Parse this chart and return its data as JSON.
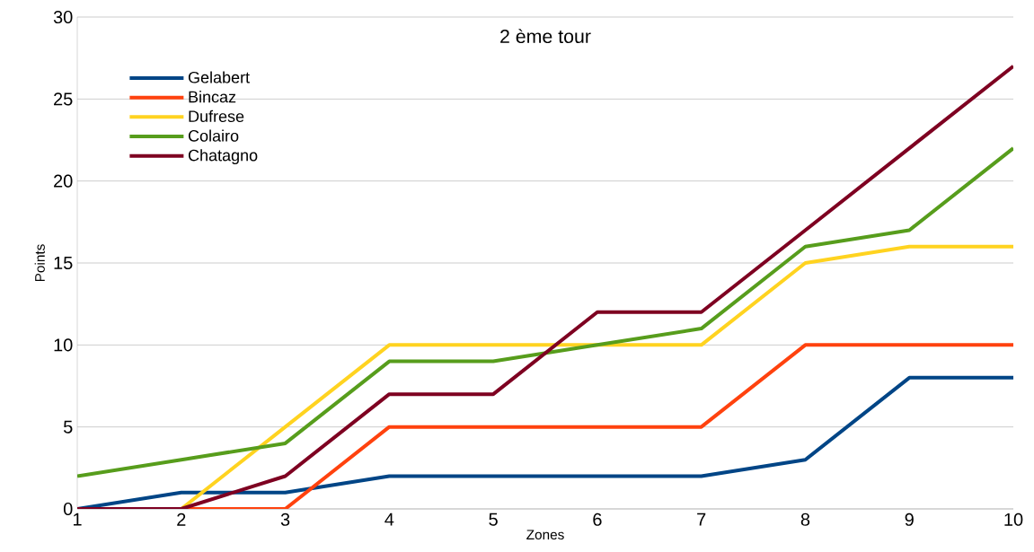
{
  "chart_data": {
    "type": "line",
    "title": "2 ème tour",
    "xlabel": "Zones",
    "ylabel": "Points",
    "x": [
      1,
      2,
      3,
      4,
      5,
      6,
      7,
      8,
      9,
      10
    ],
    "series": [
      {
        "name": "Gelabert",
        "color": "#004586",
        "values": [
          0,
          1,
          1,
          2,
          2,
          2,
          2,
          3,
          8,
          8
        ]
      },
      {
        "name": "Bincaz",
        "color": "#ff420e",
        "values": [
          0,
          0,
          0,
          5,
          5,
          5,
          5,
          10,
          10,
          10
        ]
      },
      {
        "name": "Dufrese",
        "color": "#ffd320",
        "values": [
          0,
          0,
          5,
          10,
          10,
          10,
          10,
          15,
          16,
          16
        ]
      },
      {
        "name": "Colairo",
        "color": "#579d1c",
        "values": [
          2,
          3,
          4,
          9,
          9,
          10,
          11,
          16,
          17,
          22
        ]
      },
      {
        "name": "Chatagno",
        "color": "#7e0021",
        "values": [
          0,
          0,
          2,
          7,
          7,
          12,
          12,
          17,
          22,
          27
        ]
      }
    ],
    "xlim": [
      1,
      10
    ],
    "ylim": [
      0,
      30
    ],
    "xticks": [
      1,
      2,
      3,
      4,
      5,
      6,
      7,
      8,
      9,
      10
    ],
    "yticks": [
      0,
      5,
      10,
      15,
      20,
      25,
      30
    ],
    "grid": "y",
    "legend": "top left",
    "marker": "none",
    "line_style": "solid"
  }
}
